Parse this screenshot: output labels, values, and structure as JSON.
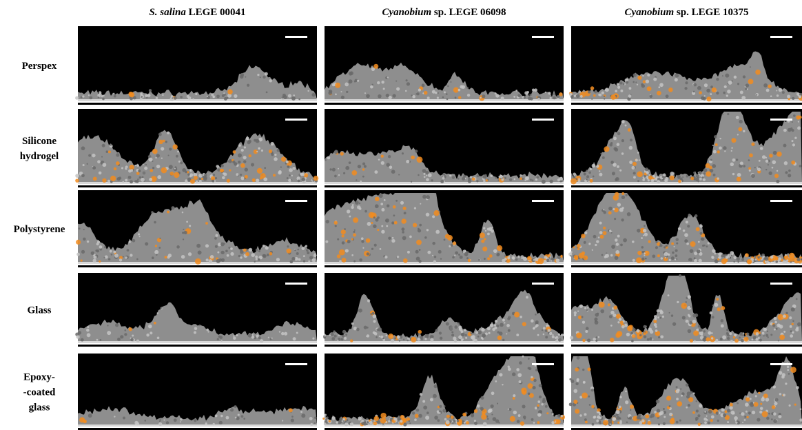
{
  "columns": [
    {
      "italic": "S. salina",
      "rest": "LEGE 00041"
    },
    {
      "italic": "Cyanobium",
      "rest": "sp. LEGE 06098"
    },
    {
      "italic": "Cyanobium",
      "rest": "sp. LEGE 10375"
    }
  ],
  "rows": [
    {
      "lines": [
        "Perspex"
      ]
    },
    {
      "lines": [
        "Silicone",
        "hydrogel"
      ]
    },
    {
      "lines": [
        "Polystyrene"
      ]
    },
    {
      "lines": [
        "Glass"
      ]
    },
    {
      "lines": [
        "Epoxy-",
        "-coated",
        "glass"
      ]
    }
  ]
}
